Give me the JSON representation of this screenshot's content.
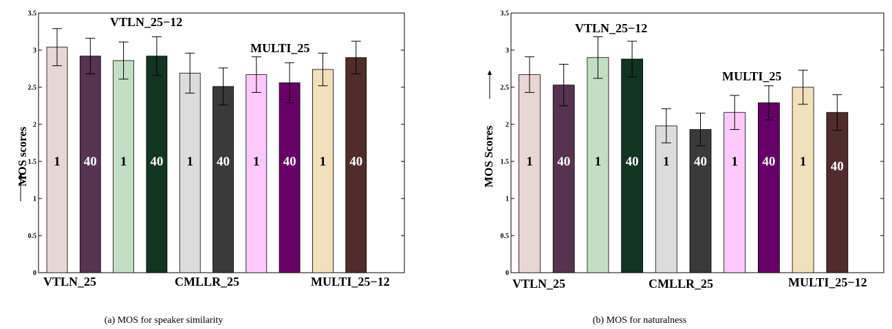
{
  "chart_data": [
    {
      "type": "bar",
      "caption": "(a) MOS for speaker similarity",
      "ylabel": "MOS scores",
      "ylim": [
        0,
        3.5
      ],
      "yticks": [
        "0",
        "0.5",
        "1",
        "1.5",
        "2",
        "2.5",
        "3",
        "3.5"
      ],
      "group_labels": [
        "VTLN_25",
        "VTLN_25−12",
        "CMLLR_25",
        "MULTI_25",
        "MULTI_25−12"
      ],
      "bar_labels": [
        "1",
        "40",
        "1",
        "40",
        "1",
        "40",
        "1",
        "40",
        "1",
        "40"
      ],
      "values": [
        3.04,
        2.92,
        2.86,
        2.92,
        2.69,
        2.51,
        2.67,
        2.56,
        2.74,
        2.9
      ],
      "errors": [
        0.25,
        0.24,
        0.25,
        0.26,
        0.27,
        0.25,
        0.24,
        0.27,
        0.22,
        0.22
      ],
      "colors": [
        "#e9d5d5",
        "#553351",
        "#c3dfc3",
        "#123423",
        "#dcdcdc",
        "#3a3a3a",
        "#fcc9fa",
        "#660066",
        "#f2dfbb",
        "#502c2a"
      ],
      "grid": false
    },
    {
      "type": "bar",
      "caption": "(b) MOS for naturalness",
      "ylabel": "MOS Scores",
      "ylim": [
        0,
        3.5
      ],
      "yticks": [
        "0",
        "0.5",
        "1",
        "1.5",
        "2",
        "2.5",
        "3",
        "3.5"
      ],
      "group_labels": [
        "VTLN_25",
        "VTLN_25−12",
        "CMLLR_25",
        "MULTI_25",
        "MULTI_25−12"
      ],
      "bar_labels": [
        "1",
        "40",
        "1",
        "40",
        "1",
        "40",
        "1",
        "40",
        "1",
        "40"
      ],
      "values": [
        2.67,
        2.53,
        2.9,
        2.88,
        1.98,
        1.93,
        2.16,
        2.29,
        2.5,
        2.16
      ],
      "errors": [
        0.24,
        0.28,
        0.28,
        0.24,
        0.23,
        0.22,
        0.23,
        0.23,
        0.23,
        0.24
      ],
      "colors": [
        "#e9d5d5",
        "#553351",
        "#c3dfc3",
        "#123423",
        "#dcdcdc",
        "#3a3a3a",
        "#fcc9fa",
        "#660066",
        "#f2dfbb",
        "#502c2a"
      ],
      "grid": false
    }
  ]
}
